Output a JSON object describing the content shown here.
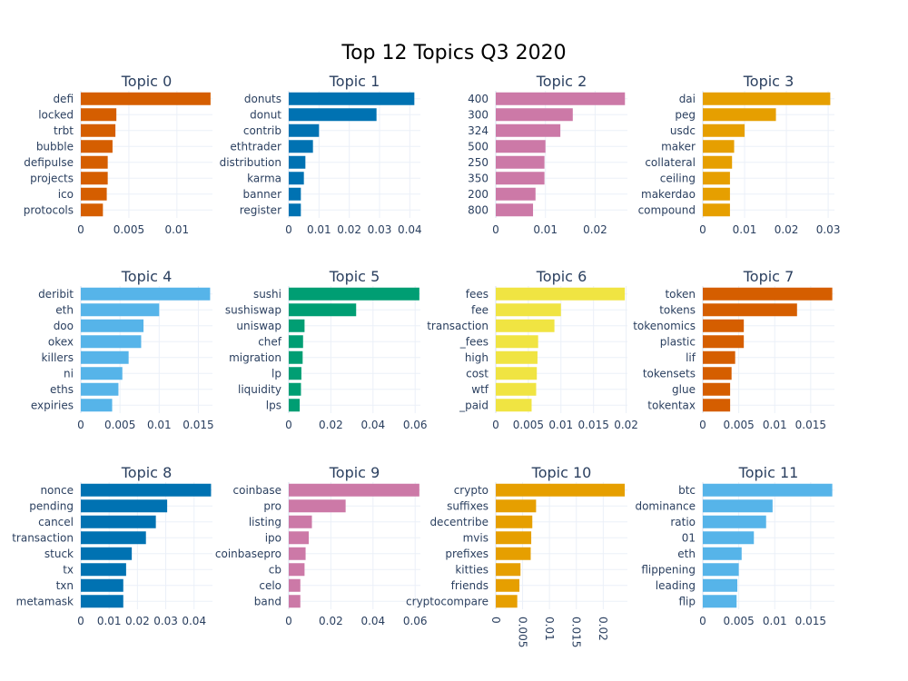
{
  "chart_data": {
    "type": "bar",
    "orientation": "horizontal",
    "title": "Top 12 Topics Q3 2020",
    "grid": true,
    "legend": "none",
    "panels": [
      {
        "title": "Topic 0",
        "color": "#D55E00",
        "xlim": [
          0,
          0.0137
        ],
        "xticks": [
          {
            "v": 0,
            "label": "0"
          },
          {
            "v": 0.005,
            "label": "0.005"
          },
          {
            "v": 0.01,
            "label": "0.01"
          }
        ],
        "categories": [
          "defi",
          "locked",
          "trbt",
          "bubble",
          "defipulse",
          "projects",
          "ico",
          "protocols"
        ],
        "values": [
          0.0135,
          0.0037,
          0.0036,
          0.0033,
          0.0028,
          0.0028,
          0.0027,
          0.0023
        ]
      },
      {
        "title": "Topic 1",
        "color": "#0072B2",
        "xlim": [
          0,
          0.0435
        ],
        "xticks": [
          {
            "v": 0,
            "label": "0"
          },
          {
            "v": 0.01,
            "label": "0.01"
          },
          {
            "v": 0.02,
            "label": "0.02"
          },
          {
            "v": 0.03,
            "label": "0.03"
          },
          {
            "v": 0.04,
            "label": "0.04"
          }
        ],
        "categories": [
          "donuts",
          "donut",
          "contrib",
          "ethtrader",
          "distribution",
          "karma",
          "banner",
          "register"
        ],
        "values": [
          0.0415,
          0.029,
          0.01,
          0.008,
          0.0055,
          0.005,
          0.004,
          0.004
        ]
      },
      {
        "title": "Topic 2",
        "color": "#CC79A7",
        "xlim": [
          0,
          0.0265
        ],
        "xticks": [
          {
            "v": 0,
            "label": "0"
          },
          {
            "v": 0.01,
            "label": "0.01"
          },
          {
            "v": 0.02,
            "label": "0.02"
          }
        ],
        "categories": [
          "400",
          "300",
          "324",
          "500",
          "250",
          "350",
          "200",
          "800"
        ],
        "values": [
          0.026,
          0.0155,
          0.013,
          0.01,
          0.0098,
          0.0098,
          0.008,
          0.0075
        ]
      },
      {
        "title": "Topic 3",
        "color": "#E69F00",
        "xlim": [
          0,
          0.0315
        ],
        "xticks": [
          {
            "v": 0,
            "label": "0"
          },
          {
            "v": 0.01,
            "label": "0.01"
          },
          {
            "v": 0.02,
            "label": "0.02"
          },
          {
            "v": 0.03,
            "label": "0.03"
          }
        ],
        "categories": [
          "dai",
          "peg",
          "usdc",
          "maker",
          "collateral",
          "ceiling",
          "makerdao",
          "compound"
        ],
        "values": [
          0.0305,
          0.0175,
          0.01,
          0.0075,
          0.007,
          0.0065,
          0.0065,
          0.0065
        ]
      },
      {
        "title": "Topic 4",
        "color": "#56B4E9",
        "xlim": [
          0,
          0.0168
        ],
        "xticks": [
          {
            "v": 0,
            "label": "0"
          },
          {
            "v": 0.005,
            "label": "0.005"
          },
          {
            "v": 0.01,
            "label": "0.01"
          },
          {
            "v": 0.015,
            "label": "0.015"
          }
        ],
        "categories": [
          "deribit",
          "eth",
          "doo",
          "okex",
          "killers",
          "ni",
          "eths",
          "expiries"
        ],
        "values": [
          0.0165,
          0.01,
          0.008,
          0.0077,
          0.0061,
          0.0053,
          0.0048,
          0.004
        ]
      },
      {
        "title": "Topic 5",
        "color": "#009E73",
        "xlim": [
          0,
          0.0625
        ],
        "xticks": [
          {
            "v": 0,
            "label": "0"
          },
          {
            "v": 0.02,
            "label": "0.02"
          },
          {
            "v": 0.04,
            "label": "0.04"
          },
          {
            "v": 0.06,
            "label": "0.06"
          }
        ],
        "categories": [
          "sushi",
          "sushiswap",
          "uniswap",
          "chef",
          "migration",
          "lp",
          "liquidity",
          "lps"
        ],
        "values": [
          0.062,
          0.032,
          0.0075,
          0.0068,
          0.0066,
          0.006,
          0.0058,
          0.0052
        ]
      },
      {
        "title": "Topic 6",
        "color": "#F0E442",
        "xlim": [
          0,
          0.0202
        ],
        "xticks": [
          {
            "v": 0,
            "label": "0"
          },
          {
            "v": 0.005,
            "label": "0.005"
          },
          {
            "v": 0.01,
            "label": "0.01"
          },
          {
            "v": 0.015,
            "label": "0.015"
          },
          {
            "v": 0.02,
            "label": "0.02"
          }
        ],
        "categories": [
          "fees",
          "fee",
          "transaction",
          "_fees",
          "high",
          "cost",
          "wtf",
          "_paid"
        ],
        "values": [
          0.0198,
          0.01,
          0.009,
          0.0065,
          0.0064,
          0.0063,
          0.0062,
          0.0055
        ]
      },
      {
        "title": "Topic 7",
        "color": "#D55E00",
        "xlim": [
          0,
          0.0183
        ],
        "xticks": [
          {
            "v": 0,
            "label": "0"
          },
          {
            "v": 0.005,
            "label": "0.005"
          },
          {
            "v": 0.01,
            "label": "0.01"
          },
          {
            "v": 0.015,
            "label": "0.015"
          }
        ],
        "categories": [
          "token",
          "tokens",
          "tokenomics",
          "plastic",
          "lif",
          "tokensets",
          "glue",
          "tokentax"
        ],
        "values": [
          0.018,
          0.0131,
          0.0057,
          0.0057,
          0.0045,
          0.004,
          0.0038,
          0.0038
        ]
      },
      {
        "title": "Topic 8",
        "color": "#0072B2",
        "xlim": [
          0,
          0.0465
        ],
        "xticks": [
          {
            "v": 0,
            "label": "0"
          },
          {
            "v": 0.01,
            "label": "0.01"
          },
          {
            "v": 0.02,
            "label": "0.02"
          },
          {
            "v": 0.03,
            "label": "0.03"
          },
          {
            "v": 0.04,
            "label": "0.04"
          }
        ],
        "categories": [
          "nonce",
          "pending",
          "cancel",
          "transaction",
          "stuck",
          "tx",
          "txn",
          "metamask"
        ],
        "values": [
          0.046,
          0.0305,
          0.0265,
          0.023,
          0.018,
          0.016,
          0.015,
          0.015
        ]
      },
      {
        "title": "Topic 9",
        "color": "#CC79A7",
        "xlim": [
          0,
          0.0625
        ],
        "xticks": [
          {
            "v": 0,
            "label": "0"
          },
          {
            "v": 0.02,
            "label": "0.02"
          },
          {
            "v": 0.04,
            "label": "0.04"
          },
          {
            "v": 0.06,
            "label": "0.06"
          }
        ],
        "categories": [
          "coinbase",
          "pro",
          "listing",
          "ipo",
          "coinbasepro",
          "cb",
          "celo",
          "band"
        ],
        "values": [
          0.062,
          0.027,
          0.011,
          0.0095,
          0.008,
          0.0075,
          0.0055,
          0.0055
        ]
      },
      {
        "title": "Topic 10",
        "color": "#E69F00",
        "xlim": [
          0,
          0.0245
        ],
        "xticks": [
          {
            "v": 0,
            "label": "0"
          },
          {
            "v": 0.005,
            "label": "0.005"
          },
          {
            "v": 0.01,
            "label": "0.01"
          },
          {
            "v": 0.015,
            "label": "0.015"
          },
          {
            "v": 0.02,
            "label": "0.02"
          }
        ],
        "xtick_rotation": 90,
        "categories": [
          "crypto",
          "suffixes",
          "decentribe",
          "mvis",
          "prefixes",
          "kitties",
          "friends",
          "cryptocompare"
        ],
        "values": [
          0.024,
          0.0075,
          0.0068,
          0.0066,
          0.0065,
          0.0046,
          0.0044,
          0.004
        ]
      },
      {
        "title": "Topic 11",
        "color": "#56B4E9",
        "xlim": [
          0,
          0.0183
        ],
        "xticks": [
          {
            "v": 0,
            "label": "0"
          },
          {
            "v": 0.005,
            "label": "0.005"
          },
          {
            "v": 0.01,
            "label": "0.01"
          },
          {
            "v": 0.015,
            "label": "0.015"
          }
        ],
        "categories": [
          "btc",
          "dominance",
          "ratio",
          "01",
          "eth",
          "flippening",
          "leading",
          "flip"
        ],
        "values": [
          0.018,
          0.0097,
          0.0088,
          0.0071,
          0.0054,
          0.005,
          0.0048,
          0.0047
        ]
      }
    ]
  }
}
